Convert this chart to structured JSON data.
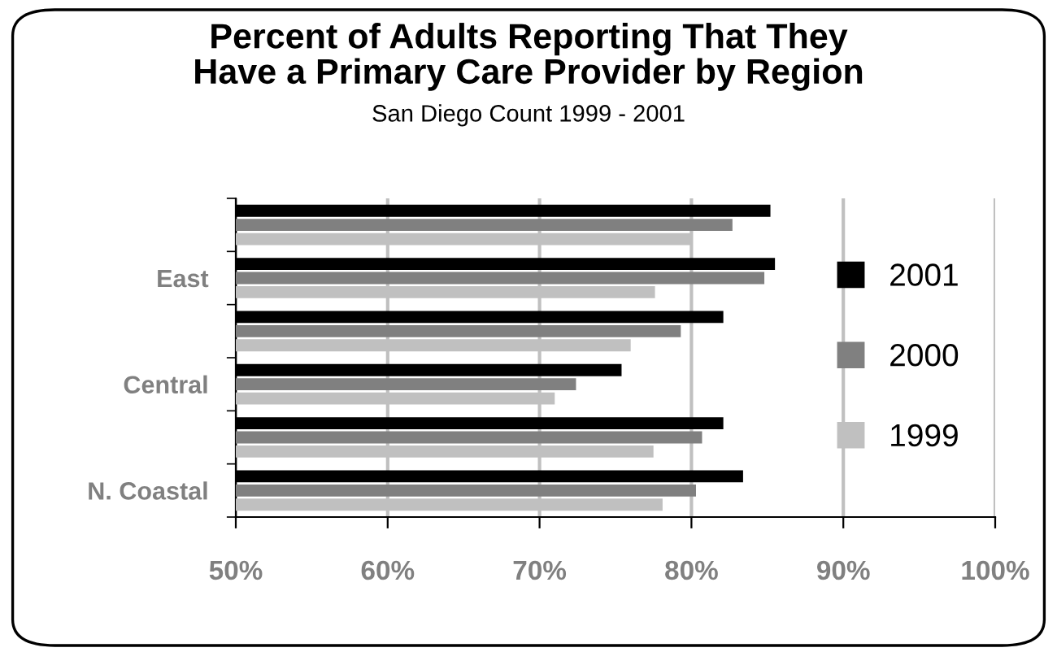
{
  "chart_data": {
    "type": "bar",
    "orientation": "horizontal",
    "title": "Percent of Adults Reporting That They\nHave a Primary Care Provider by Region",
    "subtitle": "San Diego Count 1999 - 2001",
    "categories": [
      null,
      "East",
      null,
      "Central",
      null,
      "N. Coastal"
    ],
    "series": [
      {
        "name": "2001",
        "color": "#000000",
        "values": [
          85.2,
          85.5,
          82.1,
          75.4,
          82.1,
          83.4
        ]
      },
      {
        "name": "2000",
        "color": "#808080",
        "values": [
          82.7,
          84.8,
          79.3,
          72.4,
          80.7,
          80.3
        ]
      },
      {
        "name": "1999",
        "color": "#c0c0c0",
        "values": [
          80.0,
          77.6,
          76.0,
          71.0,
          77.5,
          78.1
        ]
      }
    ],
    "xlim": [
      50,
      100
    ],
    "xticks": [
      {
        "value": 50,
        "label": "50%"
      },
      {
        "value": 60,
        "label": "60%"
      },
      {
        "value": 70,
        "label": "70%"
      },
      {
        "value": 80,
        "label": "80%"
      },
      {
        "value": 90,
        "label": "90%"
      },
      {
        "value": 100,
        "label": "100%"
      }
    ],
    "grid": "x",
    "legend": "right"
  }
}
